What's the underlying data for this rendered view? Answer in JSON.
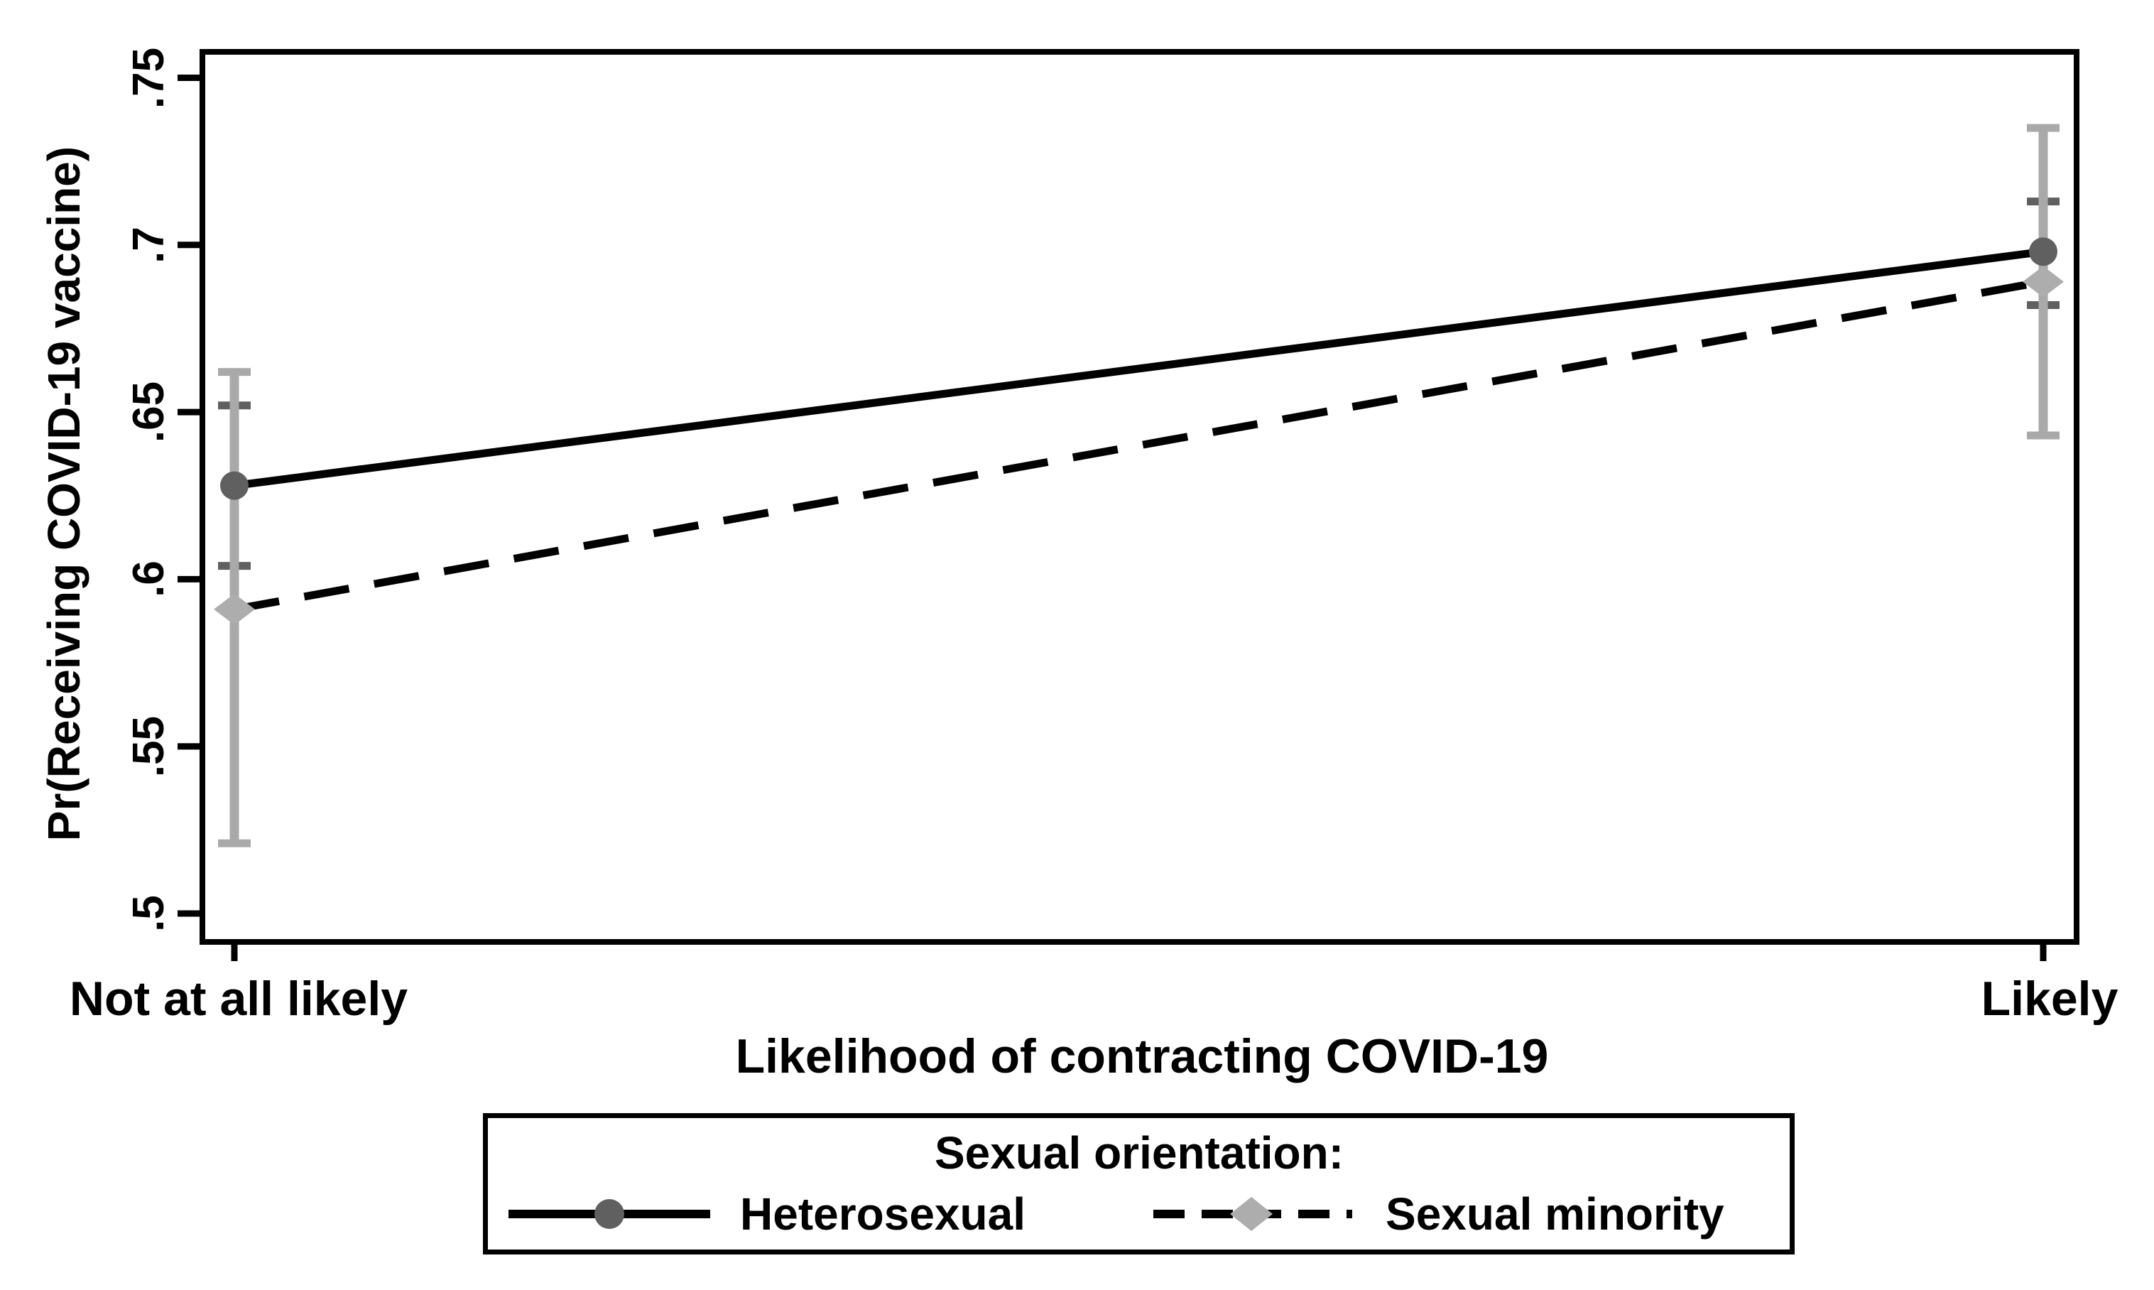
{
  "chart_data": {
    "type": "line",
    "title": "",
    "xlabel": "Likelihood of contracting COVID-19",
    "ylabel": "Pr(Receiving COVID-19 vaccine)",
    "categories": [
      "Not at all likely",
      "Likely"
    ],
    "ylim": [
      0.5,
      0.75
    ],
    "yticks": [
      0.75,
      0.7,
      0.65,
      0.6,
      0.55,
      0.5
    ],
    "ytick_labels": [
      ".75",
      ".7",
      ".65",
      ".6",
      ".55",
      ".5"
    ],
    "grid": false,
    "legend": {
      "title": "Sexual orientation:",
      "position": "bottom"
    },
    "series": [
      {
        "name": "Heterosexual",
        "line_style": "solid",
        "line_color": "#000000",
        "marker": "circle",
        "marker_color": "#606060",
        "ci_color": "#606060",
        "values": [
          0.628,
          0.698
        ],
        "ci_lower": [
          0.604,
          0.682
        ],
        "ci_upper": [
          0.652,
          0.713
        ]
      },
      {
        "name": "Sexual minority",
        "line_style": "dashed",
        "line_color": "#000000",
        "marker": "diamond",
        "marker_color": "#adadad",
        "ci_color": "#a9a9a9",
        "values": [
          0.591,
          0.689
        ],
        "ci_lower": [
          0.521,
          0.643
        ],
        "ci_upper": [
          0.662,
          0.735
        ]
      }
    ]
  }
}
